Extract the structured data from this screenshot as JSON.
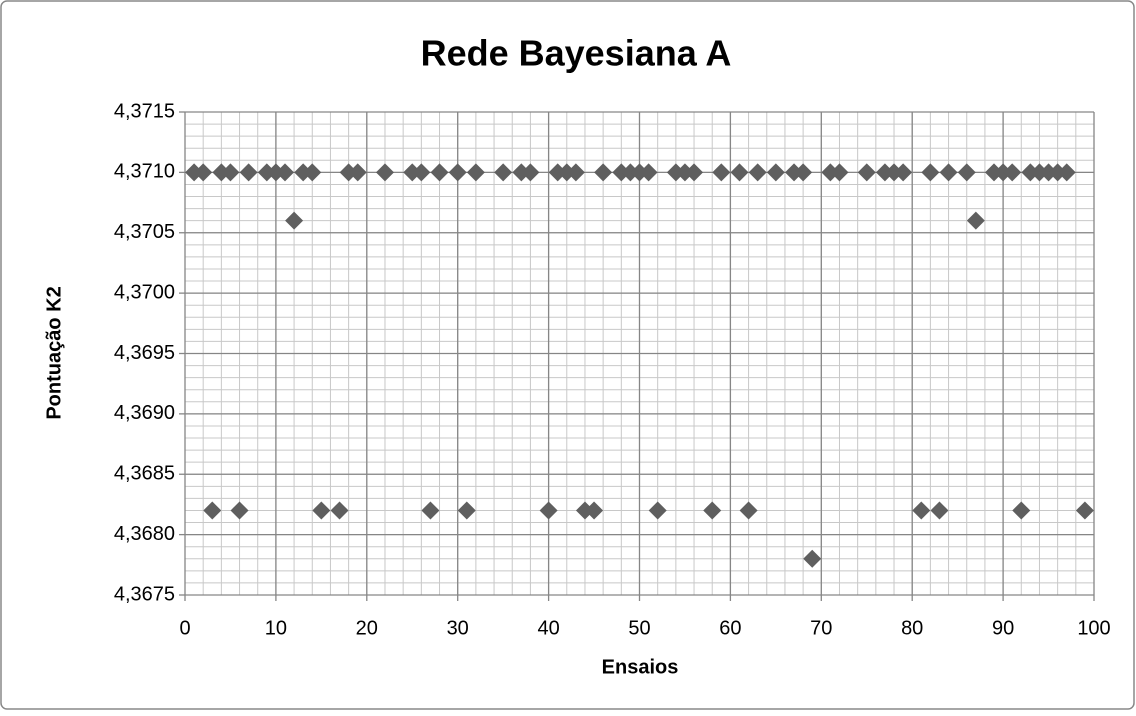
{
  "chart_data": {
    "type": "scatter",
    "title": "Rede Bayesiana A",
    "x_label": "Ensaios",
    "y_label": "Pontuação K2",
    "color": "#5f5f5f",
    "grid": true,
    "minor_grid": true,
    "x": [
      1,
      2,
      3,
      4,
      5,
      6,
      7,
      9,
      10,
      11,
      12,
      13,
      14,
      15,
      17,
      18,
      19,
      22,
      25,
      26,
      27,
      28,
      30,
      31,
      32,
      35,
      37,
      38,
      40,
      41,
      42,
      43,
      44,
      45,
      46,
      48,
      49,
      50,
      51,
      52,
      54,
      55,
      56,
      58,
      59,
      61,
      62,
      63,
      65,
      67,
      68,
      69,
      71,
      72,
      75,
      77,
      78,
      79,
      81,
      82,
      83,
      84,
      86,
      87,
      89,
      90,
      91,
      92,
      93,
      94,
      95,
      96,
      97,
      99
    ],
    "values": [
      4.371,
      4.371,
      4.3682,
      4.371,
      4.371,
      4.3682,
      4.371,
      4.371,
      4.371,
      4.371,
      4.3706,
      4.371,
      4.371,
      4.3682,
      4.3682,
      4.371,
      4.371,
      4.371,
      4.371,
      4.371,
      4.3682,
      4.371,
      4.371,
      4.3682,
      4.371,
      4.371,
      4.371,
      4.371,
      4.3682,
      4.371,
      4.371,
      4.371,
      4.3682,
      4.3682,
      4.371,
      4.371,
      4.371,
      4.371,
      4.371,
      4.3682,
      4.371,
      4.371,
      4.371,
      4.3682,
      4.371,
      4.371,
      4.3682,
      4.371,
      4.371,
      4.371,
      4.371,
      4.3678,
      4.371,
      4.371,
      4.371,
      4.371,
      4.371,
      4.371,
      4.3682,
      4.371,
      4.3682,
      4.371,
      4.371,
      4.3706,
      4.371,
      4.371,
      4.371,
      4.3682,
      4.371,
      4.371,
      4.371,
      4.371,
      4.371,
      4.3682
    ],
    "xlim": [
      0,
      100
    ],
    "xticks": [
      0,
      10,
      20,
      30,
      40,
      50,
      60,
      70,
      80,
      90,
      100
    ],
    "ylim": [
      4.3675,
      4.3715
    ],
    "yticks": [
      {
        "value": 4.3675,
        "label": "4,3675"
      },
      {
        "value": 4.368,
        "label": "4,3680"
      },
      {
        "value": 4.3685,
        "label": "4,3685"
      },
      {
        "value": 4.369,
        "label": "4,3690"
      },
      {
        "value": 4.3695,
        "label": "4,3695"
      },
      {
        "value": 4.37,
        "label": "4,3700"
      },
      {
        "value": 4.3705,
        "label": "4,3705"
      },
      {
        "value": 4.371,
        "label": "4,3710"
      },
      {
        "value": 4.3715,
        "label": "4,3715"
      }
    ]
  }
}
